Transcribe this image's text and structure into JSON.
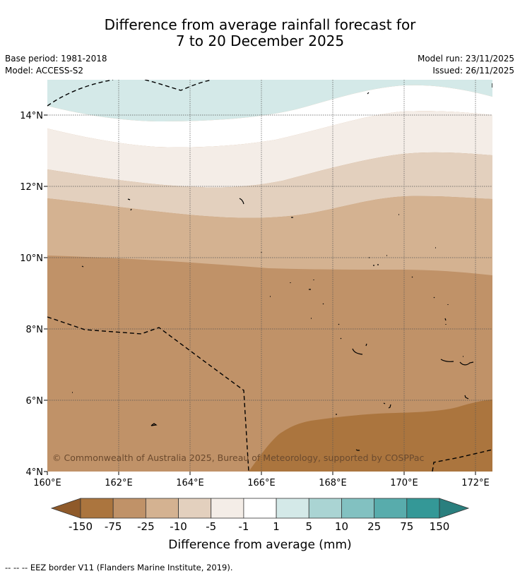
{
  "title": {
    "line1": "Difference from average rainfall forecast for",
    "line2": "7 to 20 December 2025"
  },
  "meta": {
    "base_period": "Base period: 1981-2018",
    "model": "Model: ACCESS-S2",
    "model_run": "Model run: 23/11/2025",
    "issued": "Issued: 26/11/2025"
  },
  "axes": {
    "x_ticks": [
      "160°E",
      "162°E",
      "164°E",
      "166°E",
      "168°E",
      "170°E",
      "172°E"
    ],
    "y_ticks": [
      "14°N",
      "12°N",
      "10°N",
      "8°N",
      "6°N",
      "4°N"
    ]
  },
  "copyright": "© Commonwealth of Australia 2025, Bureau of Meteorology, supported by COSPPac",
  "colorbar": {
    "labels": [
      "-150",
      "-75",
      "-25",
      "-10",
      "-5",
      "-1",
      "1",
      "5",
      "10",
      "25",
      "75",
      "150"
    ],
    "colors": [
      "#8f5a2a",
      "#ab753e",
      "#c09268",
      "#d4b291",
      "#e3d0be",
      "#f4ede7",
      "#ffffff",
      "#d4e9e8",
      "#aad4d3",
      "#82c1c1",
      "#58acac",
      "#349897",
      "#2a7f7e"
    ],
    "title": "Difference from average (mm)"
  },
  "footnote": "--  --  -- EEZ border V11 (Flanders Marine Institute, 2019)."
}
